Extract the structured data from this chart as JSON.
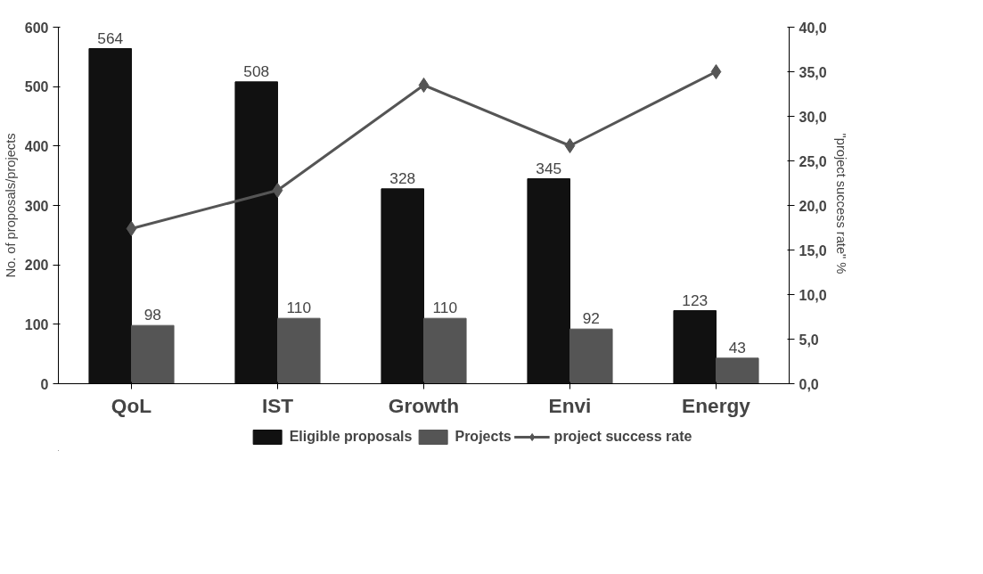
{
  "chart_data": {
    "type": "bar",
    "categories": [
      "QoL",
      "IST",
      "Growth",
      "Envi",
      "Energy"
    ],
    "ylabel": "No. of proposals/projects",
    "y2label": "\"project  success rate\" %",
    "ylim": [
      0,
      600
    ],
    "yticks": [
      0,
      100,
      200,
      300,
      400,
      500,
      600
    ],
    "y2lim": [
      0,
      40
    ],
    "y2ticks": [
      {
        "value": 0,
        "label": "0,0"
      },
      {
        "value": 5,
        "label": "5,0"
      },
      {
        "value": 10,
        "label": "10,0"
      },
      {
        "value": 15,
        "label": "15,0"
      },
      {
        "value": 20,
        "label": "20,0"
      },
      {
        "value": 25,
        "label": "25,0"
      },
      {
        "value": 30,
        "label": "30,0"
      },
      {
        "value": 35,
        "label": "35,0"
      },
      {
        "value": 40,
        "label": "40,0"
      }
    ],
    "series": [
      {
        "name": "Eligible proposals",
        "color": "#111111",
        "values": [
          564,
          508,
          328,
          345,
          123
        ],
        "value_labels": [
          "564",
          "508",
          "328",
          "345",
          "123"
        ]
      },
      {
        "name": "Projects",
        "color": "#555555",
        "values": [
          98,
          110,
          110,
          92,
          43
        ],
        "value_labels": [
          "98",
          "110",
          "110",
          "92",
          "43"
        ]
      },
      {
        "name": "project success rate",
        "type": "line",
        "axis": "y2",
        "color": "#555555",
        "marker": "diamond",
        "values": [
          17.4,
          21.7,
          33.5,
          26.7,
          35.0
        ]
      }
    ],
    "grid": false,
    "legend": "bottom"
  }
}
